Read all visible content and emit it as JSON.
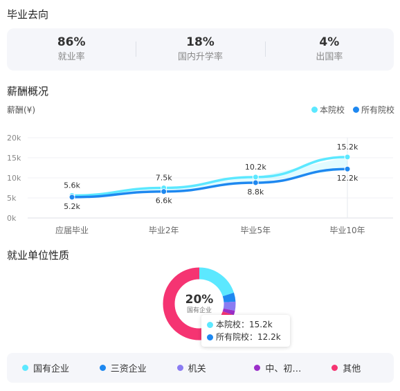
{
  "graduation": {
    "title": "毕业去向",
    "stats": [
      {
        "value": "86%",
        "label": "就业率"
      },
      {
        "value": "18%",
        "label": "国内升学率"
      },
      {
        "value": "4%",
        "label": "出国率"
      }
    ]
  },
  "salary": {
    "title": "薪酬概况",
    "unit_label": "薪酬(¥)",
    "legend": [
      {
        "name": "本院校",
        "color": "#5ce8ff"
      },
      {
        "name": "所有院校",
        "color": "#1e88f0"
      }
    ]
  },
  "chart_data": {
    "type": "line",
    "categories": [
      "应届毕业",
      "毕业2年",
      "毕业5年",
      "毕业10年"
    ],
    "y_ticks": [
      "0k",
      "5k",
      "10k",
      "15k",
      "20k"
    ],
    "ylim": [
      0,
      20
    ],
    "grid": true,
    "legend_position": "top-right",
    "series": [
      {
        "name": "本院校",
        "color": "#5ce8ff",
        "values": [
          5.6,
          7.5,
          10.2,
          15.2
        ],
        "labels": [
          "5.6k",
          "7.5k",
          "10.2k",
          "15.2k"
        ]
      },
      {
        "name": "所有院校",
        "color": "#1e88f0",
        "values": [
          5.2,
          6.6,
          8.8,
          12.2
        ],
        "labels": [
          "5.2k",
          "6.6k",
          "8.8k",
          "12.2k"
        ]
      }
    ]
  },
  "employer": {
    "title": "就业单位性质",
    "center_value": "20%",
    "center_label": "国有企业",
    "segments": [
      {
        "name": "国有企业",
        "color": "#5ce8ff",
        "value": 20
      },
      {
        "name": "三资企业",
        "color": "#1e88f0",
        "value": 4
      },
      {
        "name": "机关",
        "color": "#8a7cf2",
        "value": 4
      },
      {
        "name": "中、初…",
        "color": "#9b2fc9",
        "value": 2
      },
      {
        "name": "其他",
        "color": "#f53472",
        "value": 70
      }
    ],
    "tooltip": {
      "rows": [
        {
          "text": "本院校：15.2k",
          "color": "#5ce8ff"
        },
        {
          "text": "所有院校：12.2k",
          "color": "#1e88f0"
        }
      ]
    }
  }
}
